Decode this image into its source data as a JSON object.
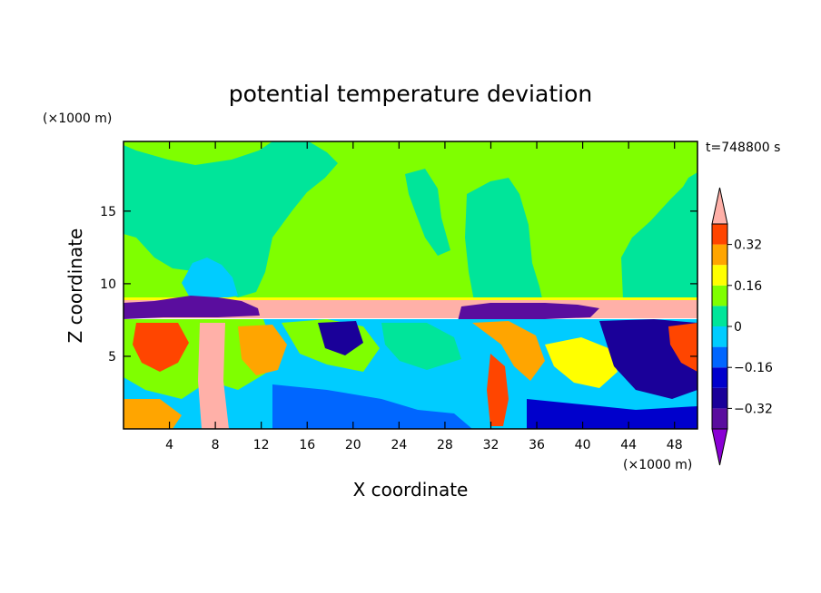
{
  "chart_data": {
    "type": "heatmap",
    "title": "potential temperature deviation",
    "xlabel": "X coordinate",
    "ylabel": "Z coordinate",
    "x_unit": "(×1000 m)",
    "y_unit": "(×1000 m)",
    "time_label": "t=748800 s",
    "xlim": [
      0,
      50
    ],
    "ylim": [
      0,
      19.8
    ],
    "x_ticks": [
      4,
      8,
      12,
      16,
      20,
      24,
      28,
      32,
      36,
      40,
      44,
      48
    ],
    "y_ticks": [
      5,
      10,
      15
    ],
    "colorbar": {
      "levels": [
        -0.4,
        -0.32,
        -0.24,
        -0.16,
        -0.08,
        0,
        0.08,
        0.16,
        0.24,
        0.32,
        0.4
      ],
      "labeled_ticks": [
        0.32,
        0.16,
        0,
        -0.16,
        -0.32
      ],
      "colors": [
        "#5a0d9e",
        "#1a0099",
        "#0000cc",
        "#0066ff",
        "#00ccff",
        "#00e59a",
        "#7fff00",
        "#ffff00",
        "#ffa500",
        "#ff4500",
        "#ff1a1a"
      ],
      "extend_low_color": "#8a00d4",
      "extend_high_color": "#ffb0a8"
    }
  }
}
